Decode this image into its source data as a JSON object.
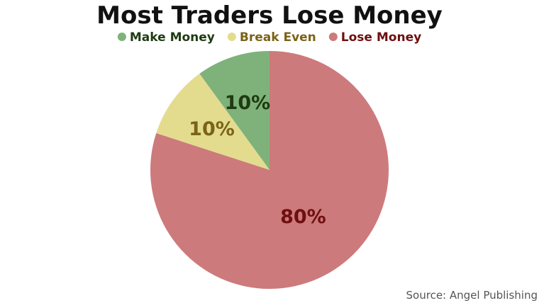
{
  "chart_data": {
    "type": "pie",
    "title": "Most Traders Lose Money",
    "legend_position": "top",
    "start_angle": "12 o'clock",
    "direction": "counterclockwise",
    "slices": [
      {
        "name": "Make Money",
        "value": 10,
        "label": "10%",
        "color": "#7fb27a",
        "text_color": "#1f3b12"
      },
      {
        "name": "Break Even",
        "value": 10,
        "label": "10%",
        "color": "#e3dc8e",
        "text_color": "#7a6318"
      },
      {
        "name": "Lose Money",
        "value": 80,
        "label": "80%",
        "color": "#cd7a7c",
        "text_color": "#6e0f10"
      }
    ],
    "source": "Source: Angel Publishing"
  }
}
